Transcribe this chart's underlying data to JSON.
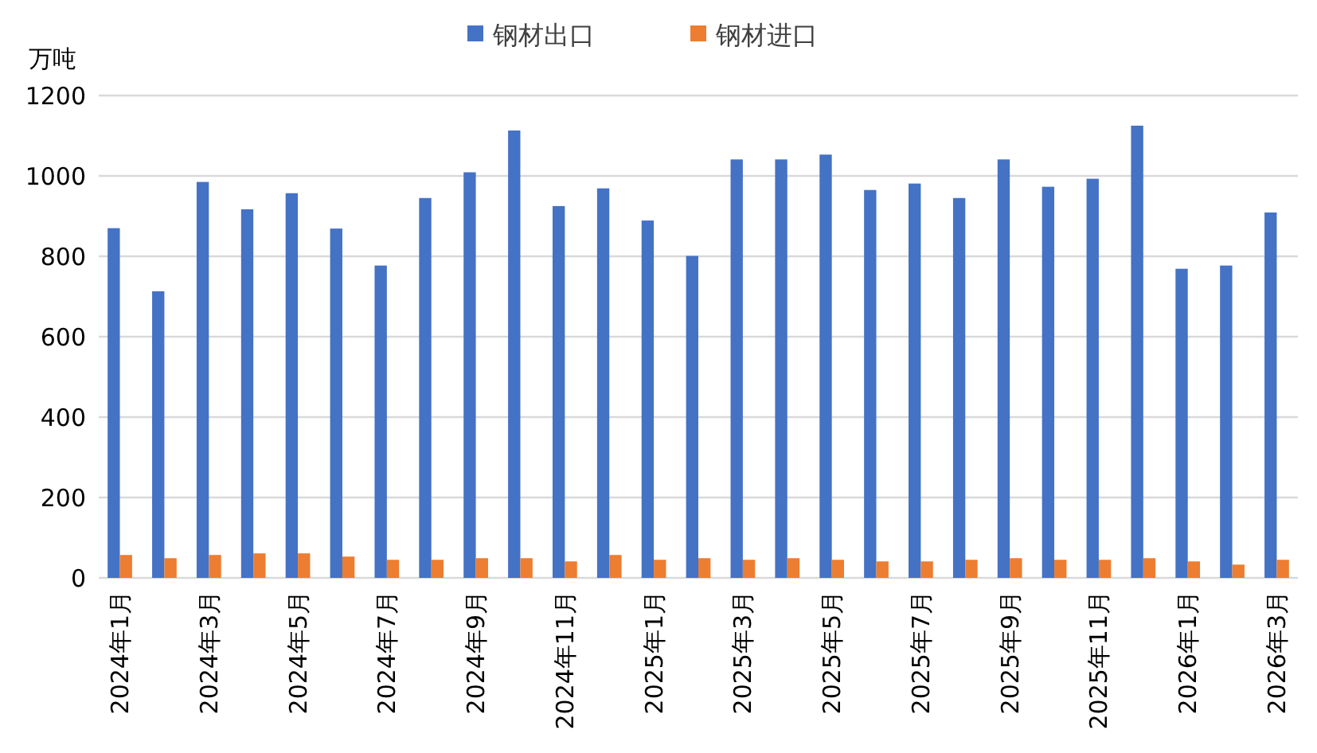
{
  "chart_data": {
    "type": "bar",
    "ylabel": "万吨",
    "categories": [
      "2024年1月",
      null,
      "2024年3月",
      null,
      "2024年5月",
      null,
      "2024年7月",
      null,
      "2024年9月",
      null,
      "2024年11月",
      null,
      "2025年1月",
      null,
      "2025年3月",
      null,
      "2025年5月",
      null,
      "2025年7月",
      null,
      "2025年9月",
      null,
      "2025年11月",
      null,
      "2026年1月",
      null,
      "2026年3月"
    ],
    "series": [
      {
        "name": "钢材出口",
        "color": "#4472c4",
        "values": [
          870,
          713,
          985,
          917,
          957,
          869,
          777,
          945,
          1009,
          1113,
          925,
          969,
          889,
          801,
          1041,
          1041,
          1053,
          965,
          981,
          945,
          1041,
          973,
          993,
          1125,
          769,
          777,
          909
        ]
      },
      {
        "name": "钢材进口",
        "color": "#ed7d31",
        "values": [
          57,
          49,
          57,
          61,
          61,
          53,
          45,
          45,
          49,
          49,
          41,
          57,
          45,
          49,
          45,
          49,
          45,
          41,
          41,
          45,
          49,
          45,
          45,
          49,
          41,
          33,
          45
        ]
      }
    ],
    "ylim": [
      0,
      1200
    ],
    "yticks": [
      0,
      200,
      400,
      600,
      800,
      1000,
      1200
    ],
    "grid": "y",
    "legend": "top"
  }
}
